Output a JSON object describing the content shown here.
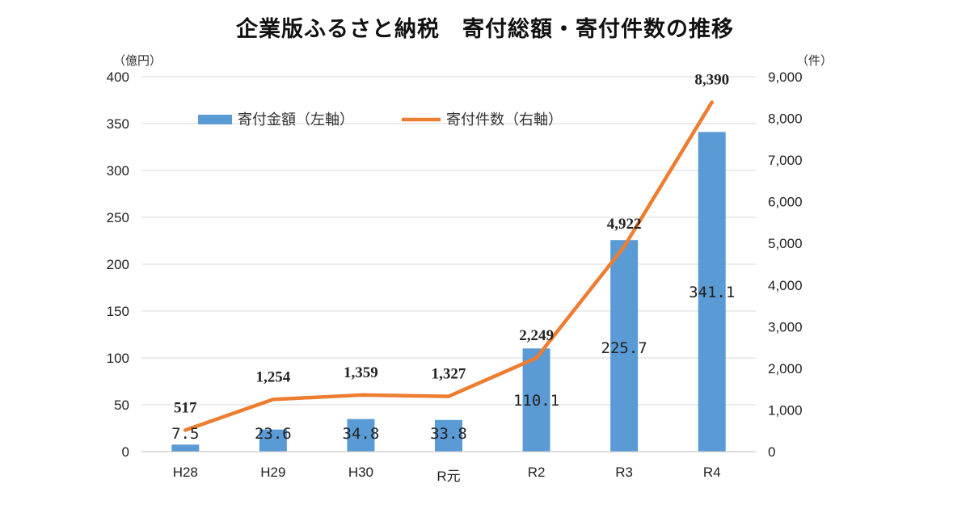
{
  "chart_data": {
    "type": "bar+line",
    "title": "企業版ふるさと納税　寄付総額・寄付件数の推移",
    "categories": [
      "H28",
      "H29",
      "H30",
      "R元",
      "R2",
      "R3",
      "R4"
    ],
    "series": [
      {
        "name": "寄付金額（左軸）",
        "type": "bar",
        "axis": "left",
        "color": "#5b9bd5",
        "values": [
          7.5,
          23.6,
          34.8,
          33.8,
          110.1,
          225.7,
          341.1
        ],
        "labels": [
          "7.5",
          "23.6",
          "34.8",
          "33.8",
          "110.1",
          "225.7",
          "341.1"
        ]
      },
      {
        "name": "寄付件数（右軸）",
        "type": "line",
        "axis": "right",
        "color": "#ed7d31",
        "values": [
          517,
          1254,
          1359,
          1327,
          2249,
          4922,
          8390
        ],
        "labels": [
          "517",
          "1,254",
          "1,359",
          "1,327",
          "2,249",
          "4,922",
          "8,390"
        ]
      }
    ],
    "y_left": {
      "unit": "（億円）",
      "range": [
        0,
        400
      ],
      "ticks": [
        "0",
        "50",
        "100",
        "150",
        "200",
        "250",
        "300",
        "350",
        "400"
      ]
    },
    "y_right": {
      "unit": "（件）",
      "range": [
        0,
        9000
      ],
      "ticks": [
        "0",
        "1,000",
        "2,000",
        "3,000",
        "4,000",
        "5,000",
        "6,000",
        "7,000",
        "8,000",
        "9,000"
      ]
    },
    "grid": true,
    "legend": "top-left"
  }
}
